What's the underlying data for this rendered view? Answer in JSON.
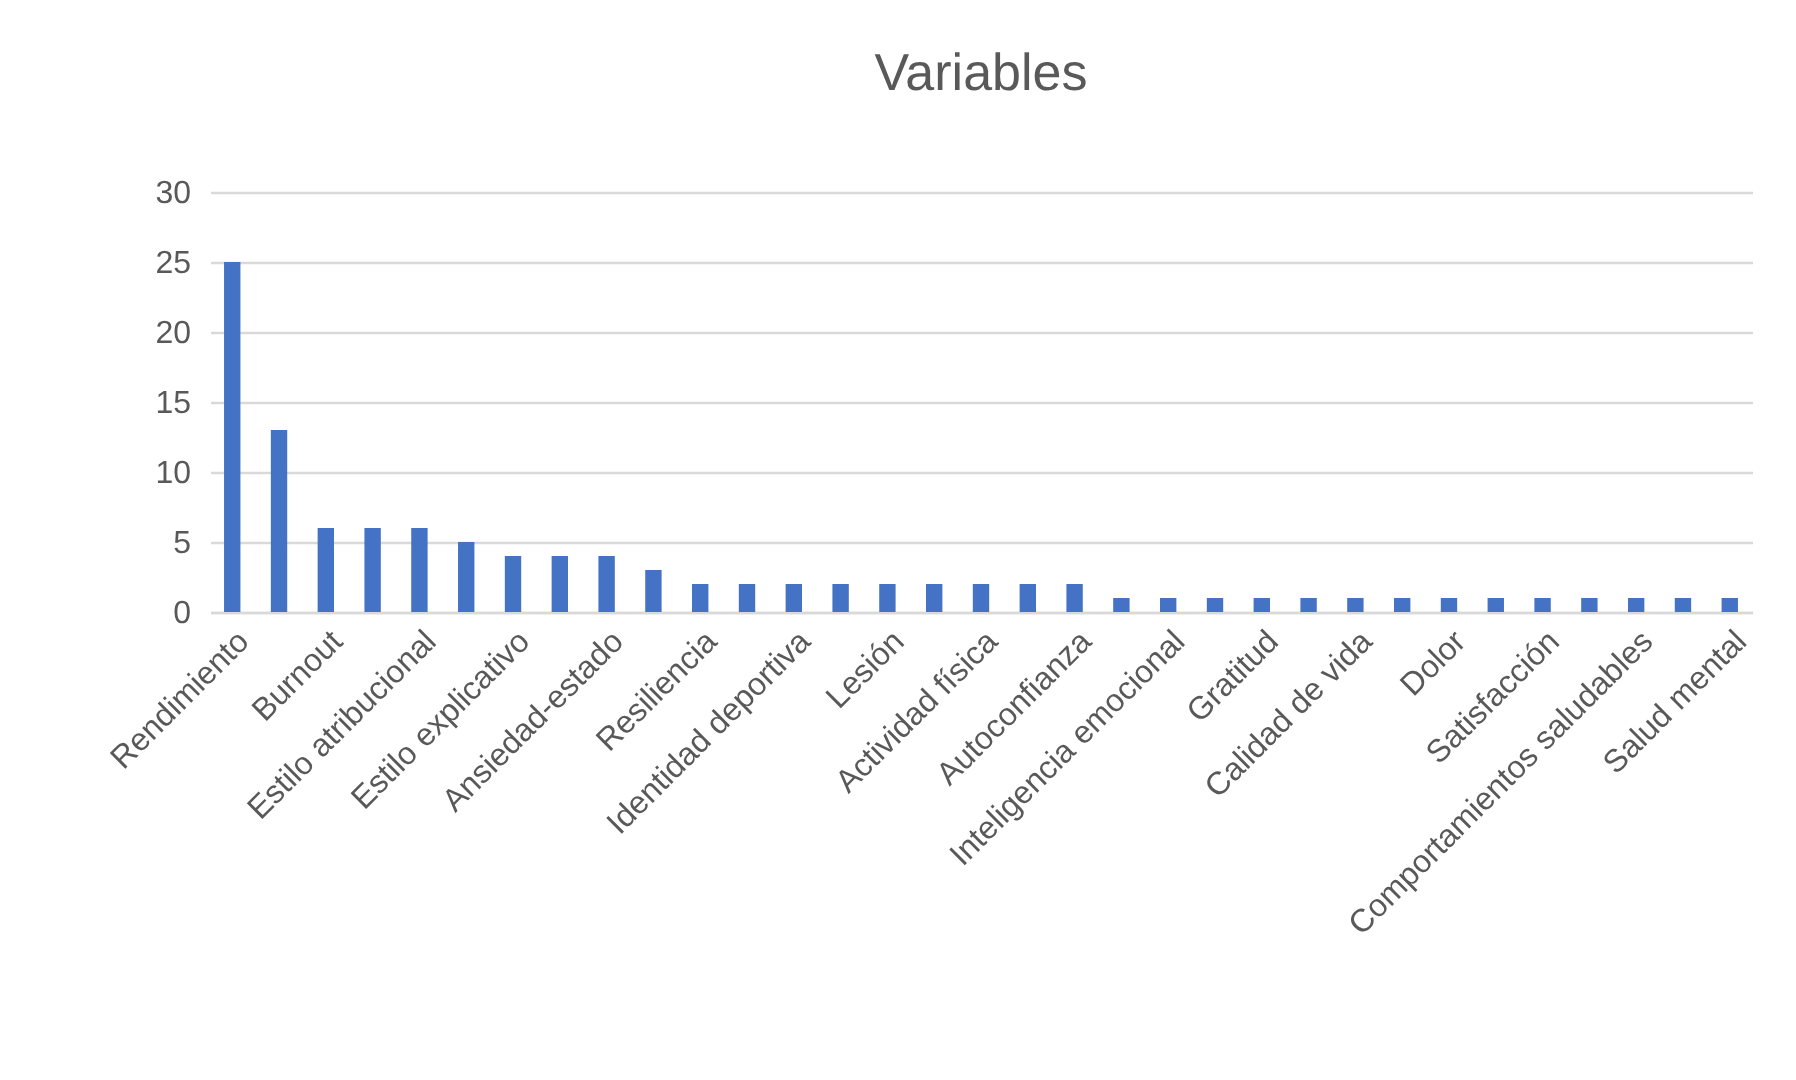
{
  "chart_data": {
    "type": "bar",
    "title": "Variables",
    "categories": [
      "Rendimiento",
      null,
      "Burnout",
      null,
      "Estilo atribucional",
      null,
      "Estilo explicativo",
      null,
      "Ansiedad-estado",
      null,
      "Resiliencia",
      null,
      "Identidad deportiva",
      null,
      "Lesión",
      null,
      "Actividad física",
      null,
      "Autoconfianza",
      null,
      "Inteligencia emocional",
      null,
      "Gratitud",
      null,
      "Calidad de vida",
      null,
      "Dolor",
      null,
      "Satisfacción",
      null,
      "Comportamientos saludables",
      null,
      "Salud mental"
    ],
    "values": [
      25,
      13,
      6,
      6,
      6,
      5,
      4,
      4,
      4,
      3,
      2,
      2,
      2,
      2,
      2,
      2,
      2,
      2,
      2,
      1,
      1,
      1,
      1,
      1,
      1,
      1,
      1,
      1,
      1,
      1,
      1,
      1,
      1
    ],
    "color": "#4472c4",
    "ylim": [
      0,
      30
    ],
    "yticks": [
      0,
      5,
      10,
      15,
      20,
      25,
      30
    ],
    "grid": true
  }
}
